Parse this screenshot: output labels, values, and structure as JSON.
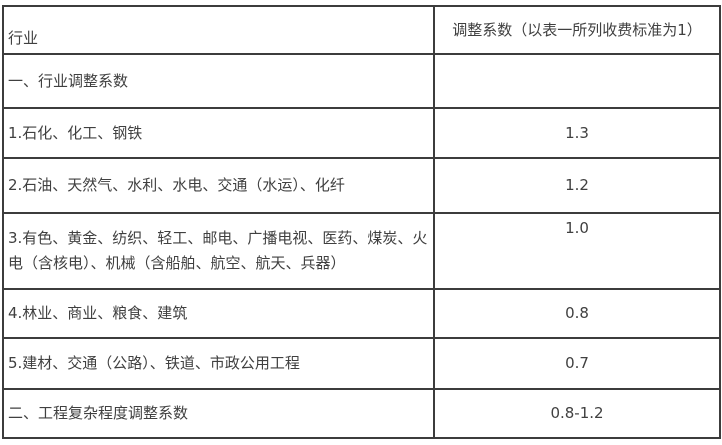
{
  "table": {
    "title_semantic": "行业调整系数表",
    "colors": {
      "border": "#3c3c3c",
      "text": "#404040",
      "background": "#ffffff"
    },
    "header": {
      "industry_label": "行业",
      "coefficient_label": "调整系数（以表一所列收费标准为1）"
    },
    "rows": [
      {
        "industry": "一、行业调整系数",
        "value": ""
      },
      {
        "industry": "1.石化、化工、钢铁",
        "value": "1.3"
      },
      {
        "industry": "2.石油、天然气、水利、水电、交通（水运）、化纤",
        "value": "1.2"
      },
      {
        "industry": "3.有色、黄金、纺织、轻工、邮电、广播电视、医药、煤炭、火电（含核电）、机械（含船舶、航空、航天、兵器）",
        "value": "1.0"
      },
      {
        "industry": "4.林业、商业、粮食、建筑",
        "value": "0.8"
      },
      {
        "industry": "5.建材、交通（公路）、铁道、市政公用工程",
        "value": "0.7"
      },
      {
        "industry": "二、工程复杂程度调整系数",
        "value": "0.8-1.2"
      }
    ]
  }
}
